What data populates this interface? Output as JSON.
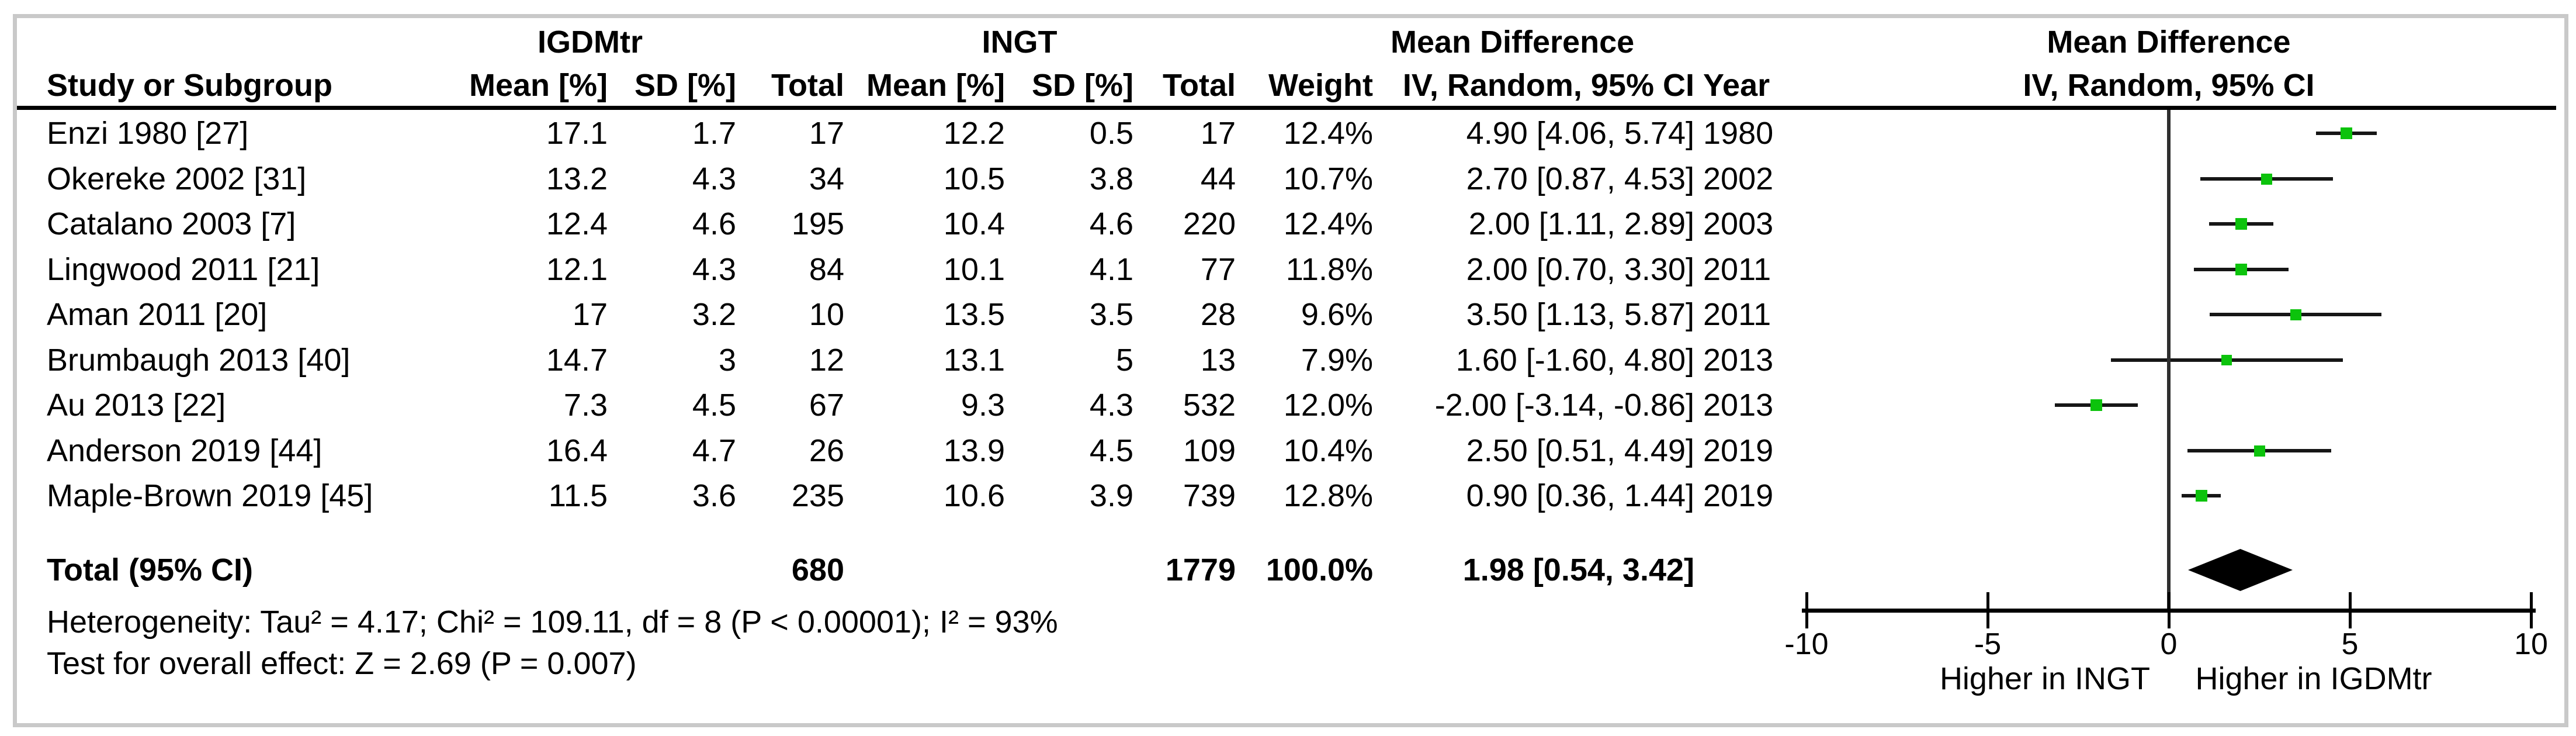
{
  "chart_data": {
    "type": "forest",
    "group_headers": {
      "experimental": "IGDMtr",
      "control": "INGT"
    },
    "effect_header": "Mean Difference",
    "method_header": "IV, Random, 95% CI",
    "columns": {
      "study": "Study or Subgroup",
      "mean": "Mean [%]",
      "sd": "SD [%]",
      "total": "Total",
      "weight": "Weight",
      "ci": "IV, Random, 95% CI",
      "year": "Year"
    },
    "studies": [
      {
        "name": "Enzi 1980 [27]",
        "mean1": "17.1",
        "sd1": "1.7",
        "total1": "17",
        "mean2": "12.2",
        "sd2": "0.5",
        "total2": "17",
        "weight": "12.4%",
        "ci": "4.90 [4.06, 5.74]",
        "year": "1980",
        "est": 4.9,
        "lo": 4.06,
        "hi": 5.74,
        "weight_num": 12.4
      },
      {
        "name": "Okereke 2002 [31]",
        "mean1": "13.2",
        "sd1": "4.3",
        "total1": "34",
        "mean2": "10.5",
        "sd2": "3.8",
        "total2": "44",
        "weight": "10.7%",
        "ci": "2.70 [0.87, 4.53]",
        "year": "2002",
        "est": 2.7,
        "lo": 0.87,
        "hi": 4.53,
        "weight_num": 10.7
      },
      {
        "name": "Catalano 2003 [7]",
        "mean1": "12.4",
        "sd1": "4.6",
        "total1": "195",
        "mean2": "10.4",
        "sd2": "4.6",
        "total2": "220",
        "weight": "12.4%",
        "ci": "2.00 [1.11, 2.89]",
        "year": "2003",
        "est": 2.0,
        "lo": 1.11,
        "hi": 2.89,
        "weight_num": 12.4
      },
      {
        "name": "Lingwood 2011 [21]",
        "mean1": "12.1",
        "sd1": "4.3",
        "total1": "84",
        "mean2": "10.1",
        "sd2": "4.1",
        "total2": "77",
        "weight": "11.8%",
        "ci": "2.00 [0.70, 3.30]",
        "year": "2011",
        "est": 2.0,
        "lo": 0.7,
        "hi": 3.3,
        "weight_num": 11.8
      },
      {
        "name": "Aman 2011 [20]",
        "mean1": "17",
        "sd1": "3.2",
        "total1": "10",
        "mean2": "13.5",
        "sd2": "3.5",
        "total2": "28",
        "weight": "9.6%",
        "ci": "3.50 [1.13, 5.87]",
        "year": "2011",
        "est": 3.5,
        "lo": 1.13,
        "hi": 5.87,
        "weight_num": 9.6
      },
      {
        "name": "Brumbaugh 2013 [40]",
        "mean1": "14.7",
        "sd1": "3",
        "total1": "12",
        "mean2": "13.1",
        "sd2": "5",
        "total2": "13",
        "weight": "7.9%",
        "ci": "1.60 [-1.60, 4.80]",
        "year": "2013",
        "est": 1.6,
        "lo": -1.6,
        "hi": 4.8,
        "weight_num": 7.9
      },
      {
        "name": "Au 2013 [22]",
        "mean1": "7.3",
        "sd1": "4.5",
        "total1": "67",
        "mean2": "9.3",
        "sd2": "4.3",
        "total2": "532",
        "weight": "12.0%",
        "ci": "-2.00 [-3.14, -0.86]",
        "year": "2013",
        "est": -2.0,
        "lo": -3.14,
        "hi": -0.86,
        "weight_num": 12.0
      },
      {
        "name": "Anderson 2019 [44]",
        "mean1": "16.4",
        "sd1": "4.7",
        "total1": "26",
        "mean2": "13.9",
        "sd2": "4.5",
        "total2": "109",
        "weight": "10.4%",
        "ci": "2.50 [0.51, 4.49]",
        "year": "2019",
        "est": 2.5,
        "lo": 0.51,
        "hi": 4.49,
        "weight_num": 10.4
      },
      {
        "name": "Maple-Brown 2019 [45]",
        "mean1": "11.5",
        "sd1": "3.6",
        "total1": "235",
        "mean2": "10.6",
        "sd2": "3.9",
        "total2": "739",
        "weight": "12.8%",
        "ci": "0.90 [0.36, 1.44]",
        "year": "2019",
        "est": 0.9,
        "lo": 0.36,
        "hi": 1.44,
        "weight_num": 12.8
      }
    ],
    "total": {
      "label": "Total (95% CI)",
      "total1": "680",
      "total2": "1779",
      "weight": "100.0%",
      "ci": "1.98 [0.54, 3.42]",
      "est": 1.98,
      "lo": 0.54,
      "hi": 3.42
    },
    "heterogeneity": "Heterogeneity: Tau² = 4.17; Chi² = 109.11, df = 8 (P < 0.00001); I² = 93%",
    "overall_effect": "Test for overall effect: Z = 2.69 (P = 0.007)",
    "axis": {
      "min": -10,
      "max": 10,
      "ticks": [
        "-10",
        "-5",
        "0",
        "5",
        "10"
      ],
      "tick_values": [
        -10,
        -5,
        0,
        5,
        10
      ],
      "left_label": "Higher in INGT",
      "right_label": "Higher in IGDMtr"
    },
    "colors": {
      "marker_green": "#0cc30c",
      "frame_gray": "#c9c9c9",
      "line_black": "#000000"
    }
  }
}
